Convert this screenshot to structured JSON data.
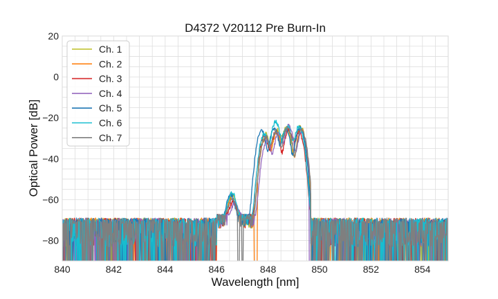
{
  "chart_data": {
    "type": "line",
    "title": "D4372 V20112 Pre Burn-In",
    "xlabel": "Wavelength [nm]",
    "ylabel": "Optical Power [dB]",
    "xlim": [
      840,
      855
    ],
    "ylim": [
      -90,
      20
    ],
    "x_ticks": [
      840,
      842,
      844,
      846,
      848,
      850,
      852,
      854
    ],
    "y_ticks": [
      20,
      0,
      -20,
      -40,
      -60,
      -80
    ],
    "x_tick_labels": [
      "840",
      "842",
      "844",
      "846",
      "848",
      "850",
      "852",
      "854"
    ],
    "y_tick_labels": [
      "20",
      "0",
      "−20",
      "−40",
      "−60",
      "−80"
    ],
    "minor_grid_step": {
      "x": 0.5,
      "y": 5
    },
    "grid": true,
    "legend": {
      "position": "top-left"
    },
    "noise_floor": {
      "level_db": -71,
      "band_db": [
        -90,
        -68
      ],
      "range_nm": [
        840,
        855
      ]
    },
    "series": [
      {
        "name": "Ch. 1",
        "color": "#bcbd22",
        "phase": 0.05,
        "peaks": [
          [
            846.6,
            -58
          ],
          [
            847.9,
            -28
          ],
          [
            848.35,
            -26
          ],
          [
            848.7,
            -25
          ],
          [
            849.25,
            -24
          ]
        ],
        "signal_range": [
          846.0,
          849.65
        ],
        "dropouts": []
      },
      {
        "name": "Ch. 2",
        "color": "#ff7f0e",
        "phase": -0.05,
        "peaks": [
          [
            846.6,
            -60
          ],
          [
            847.9,
            -30
          ],
          [
            848.35,
            -27
          ],
          [
            848.75,
            -25
          ],
          [
            849.3,
            -26
          ]
        ],
        "signal_range": [
          846.0,
          849.65
        ],
        "dropouts": [
          847.5,
          847.55
        ]
      },
      {
        "name": "Ch. 3",
        "color": "#d62728",
        "phase": 0.0,
        "peaks": [
          [
            846.65,
            -62
          ],
          [
            847.85,
            -29
          ],
          [
            848.3,
            -27
          ],
          [
            848.8,
            -26
          ],
          [
            849.2,
            -27
          ]
        ],
        "signal_range": [
          846.0,
          849.65
        ],
        "dropouts": []
      },
      {
        "name": "Ch. 4",
        "color": "#9467bd",
        "phase": 0.08,
        "peaks": [
          [
            846.7,
            -63
          ],
          [
            847.95,
            -31
          ],
          [
            848.4,
            -28
          ],
          [
            848.8,
            -24
          ],
          [
            849.3,
            -27
          ]
        ],
        "signal_range": [
          846.0,
          849.65
        ],
        "dropouts": [
          849.62
        ]
      },
      {
        "name": "Ch. 5",
        "color": "#1f77b4",
        "phase": -0.1,
        "peaks": [
          [
            846.55,
            -58
          ],
          [
            847.75,
            -26
          ],
          [
            848.25,
            -25
          ],
          [
            848.7,
            -26
          ],
          [
            849.25,
            -25
          ]
        ],
        "signal_range": [
          846.0,
          849.65
        ],
        "dropouts": []
      },
      {
        "name": "Ch. 6",
        "color": "#17becf",
        "phase": -0.02,
        "peaks": [
          [
            846.6,
            -57
          ],
          [
            847.85,
            -28
          ],
          [
            848.3,
            -22
          ],
          [
            848.75,
            -24
          ],
          [
            849.2,
            -24
          ]
        ],
        "signal_range": [
          846.0,
          849.65
        ],
        "dropouts": []
      },
      {
        "name": "Ch. 7",
        "color": "#7f7f7f",
        "phase": 0.03,
        "peaks": [
          [
            846.6,
            -61
          ],
          [
            847.9,
            -29
          ],
          [
            848.3,
            -27
          ],
          [
            848.75,
            -25
          ],
          [
            849.3,
            -26
          ]
        ],
        "signal_range": [
          846.0,
          849.65
        ],
        "dropouts": [
          846.85,
          847.0
        ]
      }
    ]
  }
}
